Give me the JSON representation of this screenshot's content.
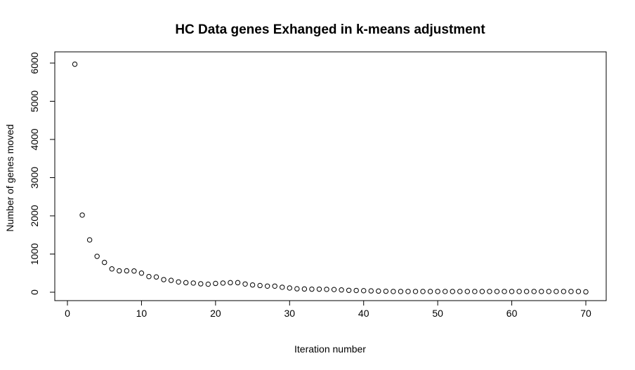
{
  "chart_data": {
    "type": "scatter",
    "title": "HC Data genes Exhanged in k-means adjustment",
    "xlabel": "Iteration number",
    "ylabel": "Number of genes moved",
    "xlim": [
      0,
      70
    ],
    "ylim": [
      0,
      6000
    ],
    "x_ticks": [
      0,
      10,
      20,
      30,
      40,
      50,
      60,
      70
    ],
    "y_ticks": [
      0,
      1000,
      2000,
      3000,
      4000,
      5000,
      6000
    ],
    "x_tick_labels": [
      "0",
      "10",
      "20",
      "30",
      "40",
      "50",
      "60",
      "70"
    ],
    "y_tick_labels": [
      "0",
      "1000",
      "2000",
      "3000",
      "4000",
      "5000",
      "6000"
    ],
    "grid": false,
    "legend": "none",
    "marker": "open-circle",
    "x": [
      1,
      2,
      3,
      4,
      5,
      6,
      7,
      8,
      9,
      10,
      11,
      12,
      13,
      14,
      15,
      16,
      17,
      18,
      19,
      20,
      21,
      22,
      23,
      24,
      25,
      26,
      27,
      28,
      29,
      30,
      31,
      32,
      33,
      34,
      35,
      36,
      37,
      38,
      39,
      40,
      41,
      42,
      43,
      44,
      45,
      46,
      47,
      48,
      49,
      50,
      51,
      52,
      53,
      54,
      55,
      56,
      57,
      58,
      59,
      60,
      61,
      62,
      63,
      64,
      65,
      66,
      67,
      68,
      69,
      70
    ],
    "y": [
      5970,
      2020,
      1370,
      940,
      780,
      610,
      560,
      560,
      555,
      500,
      410,
      400,
      330,
      310,
      270,
      250,
      240,
      220,
      210,
      230,
      240,
      250,
      250,
      215,
      190,
      175,
      160,
      160,
      130,
      110,
      90,
      85,
      80,
      80,
      75,
      70,
      60,
      50,
      45,
      40,
      35,
      30,
      25,
      20,
      20,
      20,
      20,
      20,
      20,
      20,
      20,
      20,
      20,
      20,
      20,
      20,
      20,
      20,
      20,
      20,
      20,
      20,
      20,
      20,
      20,
      20,
      20,
      20,
      20,
      10
    ]
  }
}
